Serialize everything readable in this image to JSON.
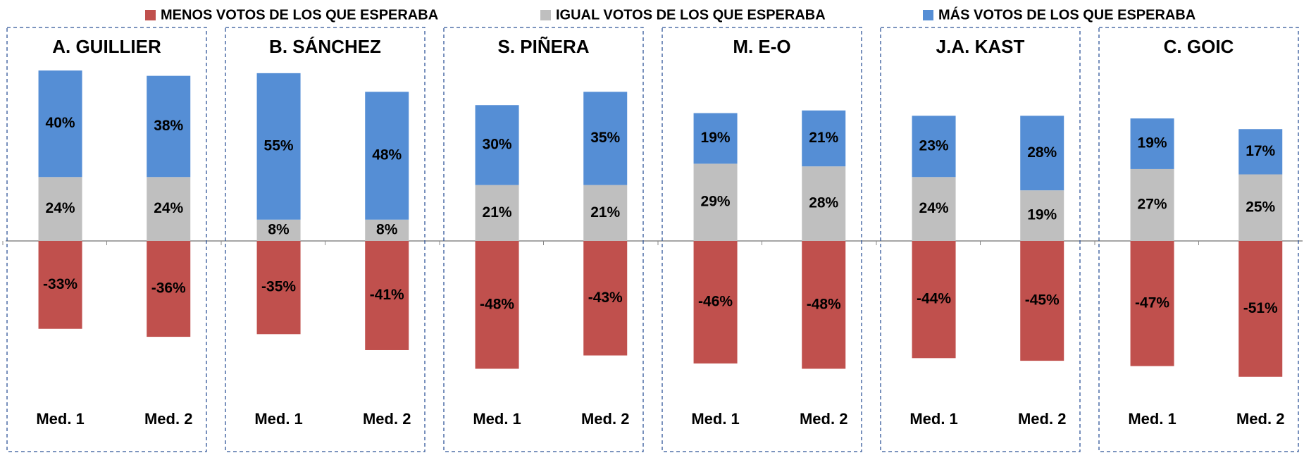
{
  "chart_data": {
    "type": "bar",
    "stacked": true,
    "groups": [
      "A. GUILLIER",
      "B. SÁNCHEZ",
      "S. PIÑERA",
      "M. E-O",
      "J.A. KAST",
      "C. GOIC"
    ],
    "categories": [
      "Med. 1",
      "Med. 2",
      "Med. 1",
      "Med. 2",
      "Med. 1",
      "Med. 2",
      "Med. 1",
      "Med. 2",
      "Med. 1",
      "Med. 2",
      "Med. 1",
      "Med. 2"
    ],
    "series": [
      {
        "name": "MENOS VOTOS DE LOS QUE ESPERABA",
        "color": "#c0504d",
        "values": [
          -33,
          -36,
          -35,
          -41,
          -48,
          -43,
          -46,
          -48,
          -44,
          -45,
          -47,
          -51
        ],
        "value_labels": [
          "-33%",
          "-36%",
          "-35%",
          "-41%",
          "-48%",
          "-43%",
          "-46%",
          "-48%",
          "-44%",
          "-45%",
          "-47%",
          "-51%"
        ]
      },
      {
        "name": "IGUAL VOTOS DE LOS QUE ESPERABA",
        "color": "#bfbfbf",
        "values": [
          24,
          24,
          8,
          8,
          21,
          21,
          29,
          28,
          24,
          19,
          27,
          25
        ],
        "value_labels": [
          "24%",
          "24%",
          "8%",
          "8%",
          "21%",
          "21%",
          "29%",
          "28%",
          "24%",
          "19%",
          "27%",
          "25%"
        ]
      },
      {
        "name": "MÁS VOTOS DE LOS QUE ESPERABA",
        "color": "#558ed5",
        "values": [
          40,
          38,
          55,
          48,
          30,
          35,
          19,
          21,
          23,
          28,
          19,
          17
        ],
        "value_labels": [
          "40%",
          "38%",
          "55%",
          "48%",
          "30%",
          "35%",
          "19%",
          "21%",
          "23%",
          "28%",
          "19%",
          "17%"
        ]
      }
    ]
  }
}
